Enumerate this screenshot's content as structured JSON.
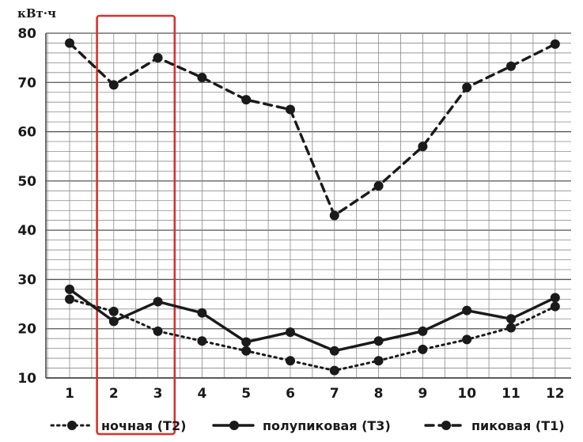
{
  "chart_data": {
    "type": "line",
    "ylabel": "кВт·ч",
    "ylim": [
      10,
      80
    ],
    "yticks": [
      10,
      20,
      30,
      40,
      50,
      60,
      70,
      80
    ],
    "categories": [
      "1",
      "2",
      "3",
      "4",
      "5",
      "6",
      "7",
      "8",
      "9",
      "10",
      "11",
      "12"
    ],
    "grid": true,
    "legend_placement": "bottom",
    "highlight": {
      "from": "2",
      "to": "3",
      "color": "#d9312b"
    },
    "series": [
      {
        "name": "ночная (Т2)",
        "style": "dotted",
        "color": "#1a1a1a",
        "values": [
          26,
          23.5,
          19.5,
          17.5,
          15.5,
          13.5,
          11.5,
          13.5,
          15.8,
          17.8,
          20.2,
          24.5
        ]
      },
      {
        "name": "полупиковая (Т3)",
        "style": "solid",
        "color": "#1a1a1a",
        "values": [
          28,
          21.5,
          25.5,
          23.2,
          17.3,
          19.3,
          15.5,
          17.5,
          19.5,
          23.7,
          22,
          26.3
        ]
      },
      {
        "name": "пиковая (Т1)",
        "style": "dashed",
        "color": "#1a1a1a",
        "values": [
          78,
          69.5,
          75,
          71,
          66.5,
          64.5,
          43,
          49,
          57,
          69,
          73.3,
          77.8
        ]
      }
    ]
  }
}
